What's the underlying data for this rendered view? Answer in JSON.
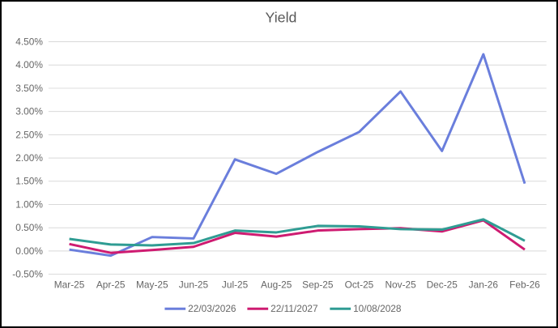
{
  "chart_data": {
    "type": "line",
    "title": "Yield",
    "xlabel": "",
    "ylabel": "",
    "categories": [
      "Mar-25",
      "Apr-25",
      "May-25",
      "Jun-25",
      "Jul-25",
      "Aug-25",
      "Sep-25",
      "Oct-25",
      "Nov-25",
      "Dec-25",
      "Jan-26",
      "Feb-26"
    ],
    "series": [
      {
        "name": "22/03/2026",
        "color": "#6A7EDC",
        "values": [
          0.03,
          -0.1,
          0.3,
          0.27,
          1.97,
          1.66,
          2.13,
          2.56,
          3.43,
          2.15,
          4.23,
          1.45
        ]
      },
      {
        "name": "22/11/2027",
        "color": "#CE1B71",
        "values": [
          0.15,
          -0.04,
          0.02,
          0.09,
          0.39,
          0.31,
          0.44,
          0.47,
          0.49,
          0.42,
          0.66,
          0.03
        ]
      },
      {
        "name": "10/08/2028",
        "color": "#2F9C93",
        "values": [
          0.26,
          0.14,
          0.12,
          0.17,
          0.44,
          0.4,
          0.54,
          0.53,
          0.47,
          0.46,
          0.68,
          0.22
        ]
      }
    ],
    "ylim": [
      -0.5,
      4.5
    ],
    "ytick_step": 0.5,
    "ytick_labels": [
      "4.50%",
      "4.00%",
      "3.50%",
      "3.00%",
      "2.50%",
      "2.00%",
      "1.50%",
      "1.00%",
      "0.50%",
      "0.00%",
      "-0.50%"
    ],
    "grid": "horizontal",
    "legend_position": "bottom",
    "colors": {
      "title_text": "#595959",
      "axis_text": "#666666",
      "gridline": "#D9D9D9",
      "background": "#FFFFFF",
      "border": "#000000"
    }
  }
}
